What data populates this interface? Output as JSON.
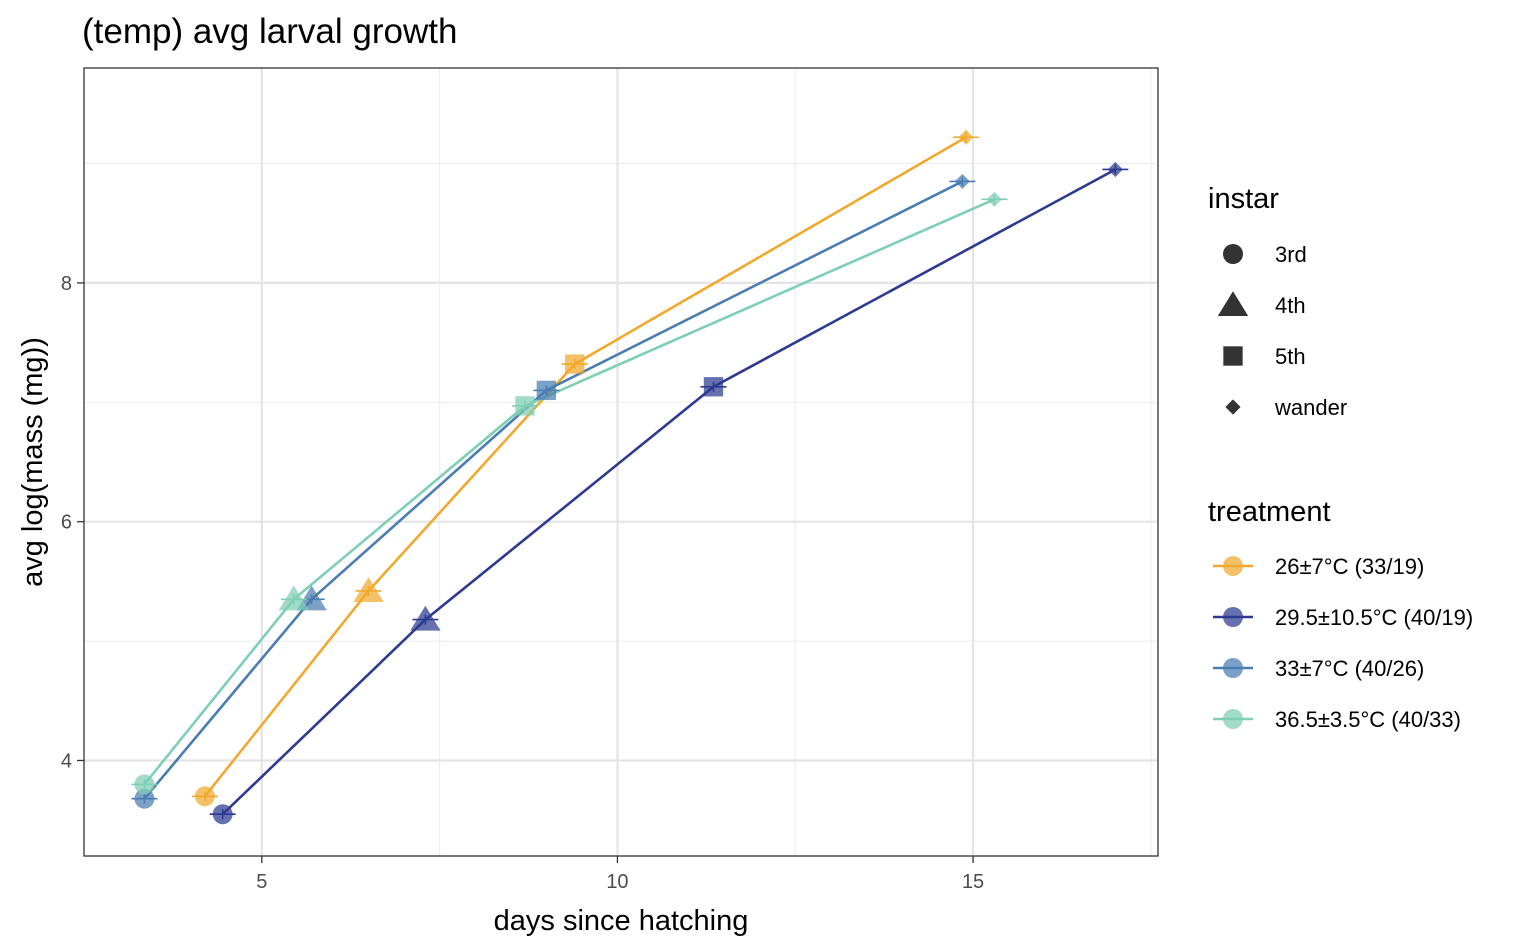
{
  "chart_data": {
    "type": "line",
    "title": "(temp) avg larval growth",
    "xlabel": "days since hatching",
    "ylabel": "avg log(mass (mg))",
    "xlim": [
      2.5,
      17.6
    ],
    "ylim": [
      3.2,
      9.8
    ],
    "x_ticks": [
      5,
      10,
      15
    ],
    "y_ticks": [
      4,
      6,
      8
    ],
    "grid": true,
    "legend_position": "right",
    "instar_legend": {
      "title": "instar",
      "items": [
        {
          "label": "3rd",
          "shape": "circle"
        },
        {
          "label": "4th",
          "shape": "triangle"
        },
        {
          "label": "5th",
          "shape": "square"
        },
        {
          "label": "wander",
          "shape": "diamond"
        }
      ]
    },
    "treatment_legend": {
      "title": "treatment"
    },
    "series": [
      {
        "name": "26±7°C (33/19)",
        "color": "#F0A92E",
        "points": [
          {
            "instar": "3rd",
            "x": 4.2,
            "y": 3.7
          },
          {
            "instar": "4th",
            "x": 6.5,
            "y": 5.42
          },
          {
            "instar": "5th",
            "x": 9.4,
            "y": 7.32
          },
          {
            "instar": "wander",
            "x": 14.9,
            "y": 9.22
          }
        ]
      },
      {
        "name": "29.5±10.5°C (40/19)",
        "color": "#2D3A90",
        "points": [
          {
            "instar": "3rd",
            "x": 4.45,
            "y": 3.55
          },
          {
            "instar": "4th",
            "x": 7.3,
            "y": 5.18
          },
          {
            "instar": "5th",
            "x": 11.35,
            "y": 7.13
          },
          {
            "instar": "wander",
            "x": 17.0,
            "y": 8.95
          }
        ]
      },
      {
        "name": "33±7°C (40/26)",
        "color": "#4A7DB2",
        "points": [
          {
            "instar": "3rd",
            "x": 3.35,
            "y": 3.68
          },
          {
            "instar": "4th",
            "x": 5.7,
            "y": 5.35
          },
          {
            "instar": "5th",
            "x": 9.0,
            "y": 7.1
          },
          {
            "instar": "wander",
            "x": 14.85,
            "y": 8.85
          }
        ]
      },
      {
        "name": "36.5±3.5°C (40/33)",
        "color": "#7ECFB3",
        "points": [
          {
            "instar": "3rd",
            "x": 3.35,
            "y": 3.8
          },
          {
            "instar": "4th",
            "x": 5.45,
            "y": 5.35
          },
          {
            "instar": "5th",
            "x": 8.7,
            "y": 6.97
          },
          {
            "instar": "wander",
            "x": 15.3,
            "y": 8.7
          }
        ]
      }
    ]
  }
}
